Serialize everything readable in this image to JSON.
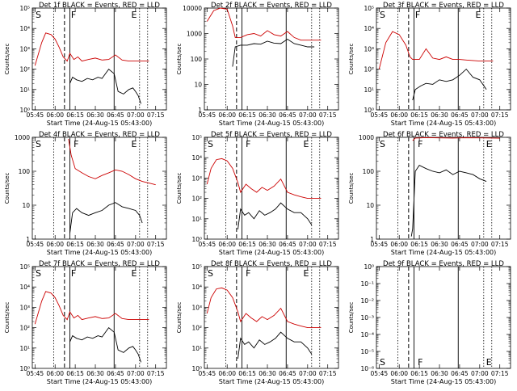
{
  "page": {
    "description": "3x3 grid of detector count-rate plots, BLACK = Events, RED = LLD"
  },
  "chart_data": [
    {
      "type": "line",
      "title": "Det 1f BLACK = Events, RED = LLD",
      "xlabel": "Start Time (24-Aug-15 05:43:00)",
      "ylabel": "Counts/sec",
      "x_ticks": [
        "05:45",
        "06:00",
        "06:15",
        "06:30",
        "06:45",
        "07:00",
        "07:15"
      ],
      "ylim": [
        1,
        100000
      ],
      "yscale": "log",
      "y_tick_labels": [
        "10⁰",
        "10¹",
        "10²",
        "10³",
        "10⁴",
        "10⁵"
      ],
      "markers": [
        {
          "label": "S",
          "x": "05:45"
        },
        {
          "label": "F",
          "x": "06:10"
        },
        {
          "label": "E",
          "x": "06:55"
        }
      ],
      "series": [
        {
          "name": "Events",
          "color": "#000000",
          "x": [
            "06:11",
            "06:13",
            "06:16",
            "06:20",
            "06:24",
            "06:28",
            "06:32",
            "06:35",
            "06:40",
            "06:44",
            "06:47",
            "06:51",
            "06:55",
            "06:58",
            "07:00",
            "07:02",
            "07:04"
          ],
          "values": [
            20,
            40,
            30,
            25,
            35,
            30,
            40,
            35,
            100,
            60,
            8,
            6,
            10,
            12,
            8,
            5,
            2
          ]
        },
        {
          "name": "LLD",
          "color": "#cc0000",
          "x": [
            "05:45",
            "05:50",
            "05:53",
            "05:57",
            "06:00",
            "06:03",
            "06:06",
            "06:09",
            "06:11",
            "06:14",
            "06:17",
            "06:20",
            "06:25",
            "06:30",
            "06:35",
            "06:40",
            "06:45",
            "06:50",
            "06:55",
            "07:00",
            "07:10"
          ],
          "values": [
            150,
            2000,
            6000,
            5000,
            3000,
            1200,
            400,
            250,
            600,
            300,
            400,
            250,
            300,
            350,
            280,
            300,
            500,
            280,
            250,
            250,
            250
          ]
        }
      ]
    },
    {
      "type": "line",
      "title": "Det 2f BLACK = Events, RED = LLD",
      "xlabel": "Start Time (24-Aug-15 05:43:00)",
      "ylabel": "Counts/sec",
      "x_ticks": [
        "05:45",
        "06:00",
        "06:15",
        "06:30",
        "06:45",
        "07:00",
        "07:15"
      ],
      "ylim": [
        1,
        10000
      ],
      "yscale": "log",
      "y_tick_labels": [
        "1",
        "10",
        "100",
        "1000",
        "10000"
      ],
      "markers": [],
      "series": [
        {
          "name": "Events",
          "color": "#000000",
          "x": [
            "06:04",
            "06:06",
            "06:10",
            "06:15",
            "06:20",
            "06:25",
            "06:30",
            "06:35",
            "06:40",
            "06:45",
            "06:50",
            "06:55",
            "07:00",
            "07:05"
          ],
          "values": [
            50,
            300,
            350,
            350,
            400,
            380,
            500,
            420,
            400,
            600,
            400,
            350,
            300,
            300
          ]
        },
        {
          "name": "LLD",
          "color": "#cc0000",
          "x": [
            "05:45",
            "05:50",
            "05:55",
            "06:00",
            "06:04",
            "06:06",
            "06:10",
            "06:15",
            "06:20",
            "06:25",
            "06:30",
            "06:35",
            "06:40",
            "06:45",
            "06:50",
            "06:55",
            "07:00",
            "07:10"
          ],
          "values": [
            3000,
            8000,
            10000,
            9000,
            2000,
            700,
            700,
            900,
            1000,
            800,
            1300,
            900,
            800,
            1200,
            700,
            550,
            550,
            550
          ]
        }
      ]
    },
    {
      "type": "line",
      "title": "Det 3f BLACK = Events, RED = LLD",
      "xlabel": "Start Time (24-Aug-15 05:43:00)",
      "ylabel": "Counts/sec",
      "x_ticks": [
        "05:45",
        "06:00",
        "06:15",
        "06:30",
        "06:45",
        "07:00",
        "07:15"
      ],
      "ylim": [
        1,
        100000
      ],
      "yscale": "log",
      "y_tick_labels": [
        "10⁰",
        "10¹",
        "10²",
        "10³",
        "10⁴",
        "10⁵"
      ],
      "markers": [
        {
          "label": "S",
          "x": "05:45"
        },
        {
          "label": "F",
          "x": "06:10"
        },
        {
          "label": "E",
          "x": "06:55"
        }
      ],
      "series": [
        {
          "name": "Events",
          "color": "#000000",
          "x": [
            "06:10",
            "06:12",
            "06:16",
            "06:20",
            "06:25",
            "06:30",
            "06:35",
            "06:40",
            "06:45",
            "06:50",
            "06:55",
            "07:00",
            "07:05"
          ],
          "values": [
            3,
            10,
            15,
            20,
            18,
            30,
            25,
            30,
            50,
            100,
            40,
            30,
            10
          ]
        },
        {
          "name": "LLD",
          "color": "#cc0000",
          "x": [
            "05:45",
            "05:50",
            "05:55",
            "06:00",
            "06:05",
            "06:08",
            "06:10",
            "06:15",
            "06:20",
            "06:25",
            "06:30",
            "06:35",
            "06:40",
            "06:45",
            "06:50",
            "07:00",
            "07:10"
          ],
          "values": [
            100,
            2000,
            7000,
            5000,
            1500,
            400,
            300,
            300,
            1000,
            350,
            300,
            400,
            300,
            300,
            280,
            250,
            250
          ]
        }
      ]
    },
    {
      "type": "line",
      "title": "Det 4f BLACK = Events, RED = LLD",
      "xlabel": "Start Time (24-Aug-15 05:43:00)",
      "ylabel": "Counts/sec",
      "x_ticks": [
        "05:45",
        "06:00",
        "06:15",
        "06:30",
        "06:45",
        "07:00",
        "07:15"
      ],
      "ylim": [
        1,
        1000
      ],
      "yscale": "log",
      "y_tick_labels": [
        "1",
        "10",
        "100",
        "1000"
      ],
      "markers": [
        {
          "label": "S",
          "x": "05:45"
        },
        {
          "label": "F",
          "x": "06:12"
        },
        {
          "label": "E",
          "x": "06:55"
        }
      ],
      "series": [
        {
          "name": "Events",
          "color": "#000000",
          "x": [
            "06:11",
            "06:13",
            "06:16",
            "06:20",
            "06:25",
            "06:30",
            "06:35",
            "06:40",
            "06:45",
            "06:50",
            "06:55",
            "07:00",
            "07:03",
            "07:05"
          ],
          "values": [
            1.5,
            6,
            8,
            6,
            5,
            6,
            7,
            10,
            12,
            9,
            8,
            7,
            5,
            3
          ]
        },
        {
          "name": "LLD",
          "color": "#cc0000",
          "x": [
            "06:10",
            "06:12",
            "06:15",
            "06:20",
            "06:25",
            "06:30",
            "06:35",
            "06:40",
            "06:45",
            "06:50",
            "06:55",
            "07:00",
            "07:05",
            "07:10",
            "07:15"
          ],
          "values": [
            900,
            300,
            120,
            90,
            70,
            60,
            75,
            90,
            110,
            100,
            80,
            60,
            50,
            45,
            40
          ]
        }
      ]
    },
    {
      "type": "line",
      "title": "Det 5f BLACK = Events, RED = LLD",
      "xlabel": "Start Time (24-Aug-15 05:43:00)",
      "ylabel": "Counts/sec",
      "x_ticks": [
        "05:45",
        "06:00",
        "06:15",
        "06:30",
        "06:45",
        "07:00",
        "07:15"
      ],
      "ylim": [
        1,
        100000
      ],
      "yscale": "log",
      "y_tick_labels": [
        "10⁰",
        "10¹",
        "10²",
        "10³",
        "10⁴",
        "10⁵"
      ],
      "markers": [
        {
          "label": "S",
          "x": "05:45"
        },
        {
          "label": "F",
          "x": "06:12"
        },
        {
          "label": "E",
          "x": "06:55"
        }
      ],
      "series": [
        {
          "name": "Events",
          "color": "#000000",
          "x": [
            "06:08",
            "06:10",
            "06:13",
            "06:16",
            "06:20",
            "06:24",
            "06:28",
            "06:32",
            "06:36",
            "06:40",
            "06:45",
            "06:50",
            "06:55",
            "07:00",
            "07:03"
          ],
          "values": [
            3,
            30,
            15,
            20,
            10,
            25,
            15,
            20,
            30,
            60,
            30,
            20,
            20,
            10,
            5
          ]
        },
        {
          "name": "LLD",
          "color": "#cc0000",
          "x": [
            "05:45",
            "05:48",
            "05:52",
            "05:56",
            "06:00",
            "06:04",
            "06:08",
            "06:10",
            "06:14",
            "06:18",
            "06:22",
            "06:26",
            "06:30",
            "06:35",
            "06:40",
            "06:45",
            "06:50",
            "06:55",
            "07:00",
            "07:10"
          ],
          "values": [
            500,
            3000,
            8000,
            9000,
            7000,
            3000,
            600,
            200,
            500,
            300,
            200,
            350,
            250,
            400,
            900,
            200,
            150,
            120,
            100,
            100
          ]
        }
      ]
    },
    {
      "type": "line",
      "title": "Det 6f BLACK = Events, RED = LLD",
      "xlabel": "Start Time (24-Aug-15 05:43:00)",
      "ylabel": "Counts/sec",
      "x_ticks": [
        "05:45",
        "06:00",
        "06:15",
        "06:30",
        "06:45",
        "07:00",
        "07:15"
      ],
      "ylim": [
        1,
        1000
      ],
      "yscale": "log",
      "y_tick_labels": [
        "1",
        "10",
        "100",
        "1000"
      ],
      "markers": [
        {
          "label": "S",
          "x": "05:45"
        },
        {
          "label": "F",
          "x": "06:12"
        },
        {
          "label": "E",
          "x": "07:03"
        }
      ],
      "series": [
        {
          "name": "Events",
          "color": "#000000",
          "x": [
            "06:09",
            "06:10",
            "06:11",
            "06:12",
            "06:15",
            "06:20",
            "06:25",
            "06:30",
            "06:35",
            "06:40",
            "06:45",
            "06:50",
            "06:55",
            "07:00",
            "07:05"
          ],
          "values": [
            1.2,
            2,
            15,
            100,
            150,
            120,
            100,
            90,
            110,
            80,
            100,
            90,
            80,
            60,
            50
          ]
        },
        {
          "name": "LLD",
          "color": "#cc0000",
          "x": [
            "06:10",
            "06:12",
            "06:20",
            "06:30",
            "06:40",
            "06:50",
            "07:00",
            "07:10",
            "07:15"
          ],
          "values": [
            800,
            950,
            980,
            960,
            950,
            970,
            960,
            950,
            940
          ]
        }
      ]
    },
    {
      "type": "line",
      "title": "Det 7f BLACK = Events, RED = LLD",
      "xlabel": "Start Time (24-Aug-15 05:43:00)",
      "ylabel": "Counts/sec",
      "x_ticks": [
        "05:45",
        "06:00",
        "06:15",
        "06:30",
        "06:45",
        "07:00",
        "07:15"
      ],
      "ylim": [
        1,
        100000
      ],
      "yscale": "log",
      "y_tick_labels": [
        "10⁰",
        "10¹",
        "10²",
        "10³",
        "10⁴",
        "10⁵"
      ],
      "markers": [
        {
          "label": "S",
          "x": "05:45"
        },
        {
          "label": "F",
          "x": "06:10"
        },
        {
          "label": "E",
          "x": "06:55"
        }
      ],
      "series": [
        {
          "name": "Events",
          "color": "#000000",
          "x": [
            "06:11",
            "06:13",
            "06:16",
            "06:20",
            "06:24",
            "06:28",
            "06:32",
            "06:35",
            "06:40",
            "06:44",
            "06:47",
            "06:51",
            "06:55",
            "06:58",
            "07:00",
            "07:02",
            "07:04"
          ],
          "values": [
            20,
            40,
            30,
            25,
            35,
            30,
            40,
            35,
            100,
            60,
            8,
            6,
            10,
            12,
            8,
            5,
            2
          ]
        },
        {
          "name": "LLD",
          "color": "#cc0000",
          "x": [
            "05:45",
            "05:50",
            "05:53",
            "05:57",
            "06:00",
            "06:03",
            "06:06",
            "06:09",
            "06:11",
            "06:14",
            "06:17",
            "06:20",
            "06:25",
            "06:30",
            "06:35",
            "06:40",
            "06:45",
            "06:50",
            "06:55",
            "07:00",
            "07:10"
          ],
          "values": [
            150,
            2000,
            6000,
            5000,
            3000,
            1200,
            400,
            250,
            600,
            300,
            400,
            250,
            300,
            350,
            280,
            300,
            500,
            280,
            250,
            250,
            250
          ]
        }
      ]
    },
    {
      "type": "line",
      "title": "Det 8f BLACK = Events, RED = LLD",
      "xlabel": "Start Time (24-Aug-15 05:43:00)",
      "ylabel": "Counts/sec",
      "x_ticks": [
        "05:45",
        "06:00",
        "06:15",
        "06:30",
        "06:45",
        "07:00",
        "07:15"
      ],
      "ylim": [
        1,
        100000
      ],
      "yscale": "log",
      "y_tick_labels": [
        "10⁰",
        "10¹",
        "10²",
        "10³",
        "10⁴",
        "10⁵"
      ],
      "markers": [
        {
          "label": "S",
          "x": "05:45"
        },
        {
          "label": "F",
          "x": "06:12"
        },
        {
          "label": "E",
          "x": "06:55"
        }
      ],
      "series": [
        {
          "name": "Events",
          "color": "#000000",
          "x": [
            "06:08",
            "06:10",
            "06:13",
            "06:16",
            "06:20",
            "06:24",
            "06:28",
            "06:32",
            "06:36",
            "06:40",
            "06:45",
            "06:50",
            "06:55",
            "07:00",
            "07:03"
          ],
          "values": [
            3,
            30,
            15,
            20,
            10,
            25,
            15,
            20,
            30,
            60,
            30,
            20,
            20,
            10,
            5
          ]
        },
        {
          "name": "LLD",
          "color": "#cc0000",
          "x": [
            "05:45",
            "05:48",
            "05:52",
            "05:56",
            "06:00",
            "06:04",
            "06:08",
            "06:10",
            "06:14",
            "06:18",
            "06:22",
            "06:26",
            "06:30",
            "06:35",
            "06:40",
            "06:45",
            "06:50",
            "06:55",
            "07:00",
            "07:10"
          ],
          "values": [
            500,
            3000,
            8000,
            9000,
            7000,
            3000,
            600,
            200,
            500,
            300,
            200,
            350,
            250,
            400,
            900,
            200,
            150,
            120,
            100,
            100
          ]
        }
      ]
    },
    {
      "type": "line",
      "title": "Det 9f BLACK = Events, RED = LLD",
      "xlabel": "Start Time (24-Aug-15 05:43:00)",
      "ylabel": "Counts/sec",
      "x_ticks": [
        "05:45",
        "06:00",
        "06:15",
        "06:30",
        "06:45",
        "07:00",
        "07:15"
      ],
      "ylim": [
        1e-06,
        1
      ],
      "yscale": "log",
      "y_tick_labels": [
        "10⁻⁶",
        "10⁻⁵",
        "10⁻⁴",
        "10⁻³",
        "10⁻²",
        "10⁻¹",
        "10⁰"
      ],
      "markers": [
        {
          "label": "S",
          "x": "05:45"
        },
        {
          "label": "F",
          "x": "06:12"
        },
        {
          "label": "E",
          "x": "07:03"
        }
      ],
      "series": []
    }
  ],
  "colors": {
    "events": "#000000",
    "lld": "#cc0000",
    "axis": "#000000",
    "background": "#ffffff"
  }
}
